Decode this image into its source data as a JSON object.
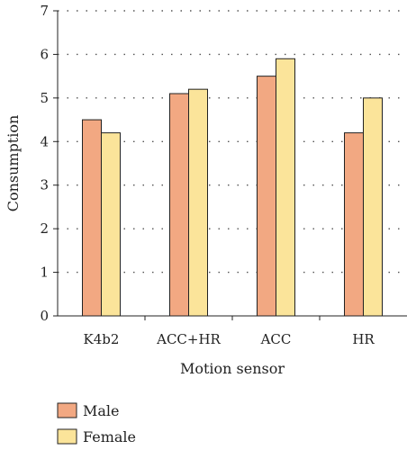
{
  "chart_data": {
    "type": "bar",
    "categories": [
      "K4b2",
      "ACC+HR",
      "ACC",
      "HR"
    ],
    "series": [
      {
        "name": "Male",
        "values": [
          4.5,
          5.1,
          5.5,
          4.2
        ],
        "color": "#f2a882"
      },
      {
        "name": "Female",
        "values": [
          4.2,
          5.2,
          5.9,
          5.0
        ],
        "color": "#fbe49a"
      }
    ],
    "title": "",
    "xlabel": "Motion sensor",
    "ylabel": "Consumption",
    "ylim": [
      0,
      7
    ],
    "yticks": [
      "0",
      "1",
      "2",
      "3",
      "4",
      "5",
      "6",
      "7"
    ],
    "grid": "horizontal dotted",
    "legend_position": "bottom-left"
  }
}
